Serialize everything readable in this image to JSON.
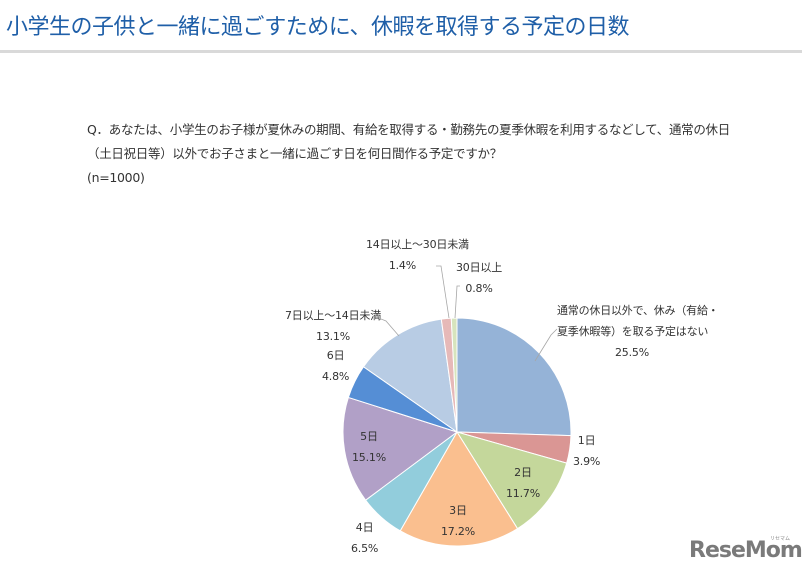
{
  "header": {
    "title": "小学生の子供と一緒に過ごすために、休暇を取得する予定の日数"
  },
  "question": {
    "line1": "Q．あなたは、小学生のお子様が夏休みの期間、有給を取得する・勤務先の夏季休暇を利用するなどして、通常の休日",
    "line2": "（土日祝日等）以外でお子さまと一緒に過ごす日を何日間作る予定ですか？",
    "sample": "(n=1000)"
  },
  "chart_data": {
    "type": "pie",
    "title": "小学生の子供と一緒に過ごすために、休暇を取得する予定の日数",
    "n": 1000,
    "start_angle_deg": 0,
    "direction": "clockwise",
    "categories": [
      "通常の休日以外で、休み（有給・夏季休暇等）を取る予定はない",
      "1日",
      "2日",
      "3日",
      "4日",
      "5日",
      "6日",
      "7日以上～14日未満",
      "14日以上～30日未満",
      "30日以上"
    ],
    "values": [
      25.5,
      3.9,
      11.7,
      17.2,
      6.5,
      15.1,
      4.8,
      13.1,
      1.4,
      0.8
    ],
    "colors": [
      "#95b3d7",
      "#da9694",
      "#c4d79b",
      "#fabf8f",
      "#92cddc",
      "#b1a0c7",
      "#558ed5",
      "#b8cce4",
      "#e6b9b8",
      "#d7e4bd"
    ],
    "unit": "%",
    "legend": "none (data labels)"
  },
  "labels": [
    {
      "name": "通常の休日以外で、休み（有給・",
      "name2": "夏季休暇等）を取る予定はない",
      "pct": "25.5%"
    },
    {
      "name": "1日",
      "pct": "3.9%"
    },
    {
      "name": "2日",
      "pct": "11.7%"
    },
    {
      "name": "3日",
      "pct": "17.2%"
    },
    {
      "name": "4日",
      "pct": "6.5%"
    },
    {
      "name": "5日",
      "pct": "15.1%"
    },
    {
      "name": "6日",
      "pct": "4.8%"
    },
    {
      "name": "7日以上～14日未満",
      "pct": "13.1%"
    },
    {
      "name": "14日以上～30日未満",
      "pct": "1.4%"
    },
    {
      "name": "30日以上",
      "pct": "0.8%"
    }
  ],
  "logo": {
    "text": "ReseMom",
    "sub": "リセマム"
  }
}
